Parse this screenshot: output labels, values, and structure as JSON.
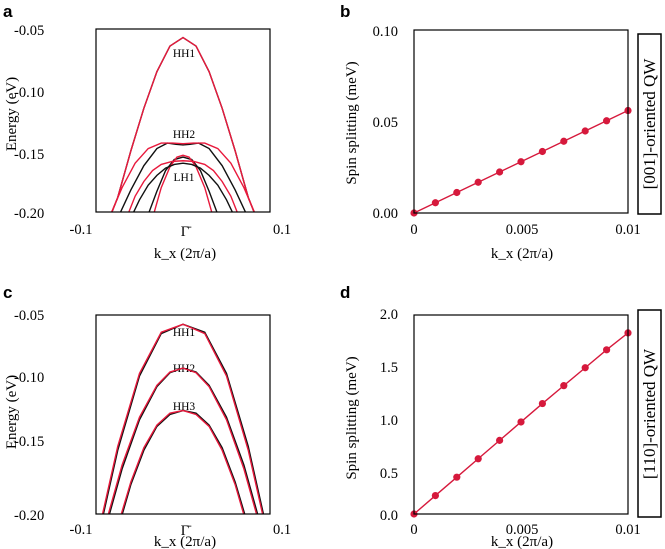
{
  "side_labels": [
    "[001]-oriented QW",
    "[110]-oriented QW"
  ],
  "chart_data": [
    {
      "panel": "a",
      "type": "line",
      "xlabel": "k_x (2π/a)",
      "ylabel": "Energy (eV)",
      "xlim": [
        -0.1,
        0.1
      ],
      "ylim": [
        -0.2,
        -0.05
      ],
      "xticks": [
        "-0.1",
        "Γ̄",
        "0.1"
      ],
      "yticks": [
        "-0.05",
        "-0.10",
        "-0.15",
        "-0.20"
      ],
      "annotations": [
        "HH1",
        "HH2",
        "LH1"
      ],
      "colors": {
        "series_1": "#111111",
        "series_2": "#e8193c"
      },
      "series": [
        {
          "color": "#111111",
          "x": [
            -0.09,
            -0.075,
            -0.06,
            -0.045,
            -0.03,
            -0.015,
            0,
            0.015,
            0.03,
            0.045,
            0.06,
            0.075,
            0.09
          ],
          "y": [
            -0.215,
            -0.188,
            -0.15,
            -0.115,
            -0.085,
            -0.064,
            -0.057,
            -0.064,
            -0.085,
            -0.115,
            -0.15,
            -0.188,
            -0.215
          ]
        },
        {
          "color": "#e8193c",
          "x": [
            -0.09,
            -0.075,
            -0.06,
            -0.045,
            -0.03,
            -0.015,
            0,
            0.015,
            0.03,
            0.045,
            0.06,
            0.075,
            0.09
          ],
          "y": [
            -0.215,
            -0.188,
            -0.15,
            -0.115,
            -0.085,
            -0.064,
            -0.057,
            -0.064,
            -0.085,
            -0.115,
            -0.15,
            -0.188,
            -0.215
          ]
        },
        {
          "color": "#111111",
          "x": [
            -0.075,
            -0.06,
            -0.045,
            -0.03,
            -0.018,
            -0.008,
            0,
            0.008,
            0.018,
            0.03,
            0.045,
            0.06,
            0.075
          ],
          "y": [
            -0.205,
            -0.182,
            -0.162,
            -0.148,
            -0.1435,
            -0.1445,
            -0.145,
            -0.1445,
            -0.1435,
            -0.148,
            -0.162,
            -0.182,
            -0.205
          ]
        },
        {
          "color": "#e8193c",
          "x": [
            -0.085,
            -0.07,
            -0.055,
            -0.04,
            -0.025,
            -0.012,
            0,
            0.012,
            0.025,
            0.04,
            0.055,
            0.07,
            0.085
          ],
          "y": [
            -0.205,
            -0.18,
            -0.16,
            -0.148,
            -0.1435,
            -0.1435,
            -0.144,
            -0.1435,
            -0.1435,
            -0.148,
            -0.16,
            -0.18,
            -0.205
          ]
        },
        {
          "color": "#111111",
          "x": [
            -0.04,
            -0.03,
            -0.02,
            -0.01,
            0,
            0.01,
            0.02,
            0.03,
            0.04
          ],
          "y": [
            -0.202,
            -0.183,
            -0.166,
            -0.157,
            -0.155,
            -0.157,
            -0.166,
            -0.183,
            -0.202
          ]
        },
        {
          "color": "#e8193c",
          "x": [
            -0.035,
            -0.025,
            -0.015,
            -0.007,
            0,
            0.007,
            0.015,
            0.025,
            0.035
          ],
          "y": [
            -0.205,
            -0.18,
            -0.163,
            -0.155,
            -0.1535,
            -0.155,
            -0.163,
            -0.18,
            -0.205
          ]
        },
        {
          "color": "#111111",
          "x": [
            -0.06,
            -0.05,
            -0.04,
            -0.03,
            -0.02,
            -0.01,
            0,
            0.01,
            0.02,
            0.03,
            0.04,
            0.05,
            0.06
          ],
          "y": [
            -0.205,
            -0.19,
            -0.178,
            -0.17,
            -0.164,
            -0.161,
            -0.16,
            -0.161,
            -0.164,
            -0.17,
            -0.178,
            -0.19,
            -0.205
          ]
        },
        {
          "color": "#e8193c",
          "x": [
            -0.065,
            -0.055,
            -0.045,
            -0.035,
            -0.025,
            -0.012,
            0,
            0.012,
            0.025,
            0.035,
            0.045,
            0.055,
            0.065
          ],
          "y": [
            -0.205,
            -0.187,
            -0.175,
            -0.166,
            -0.161,
            -0.1585,
            -0.158,
            -0.1585,
            -0.161,
            -0.166,
            -0.175,
            -0.187,
            -0.205
          ]
        }
      ]
    },
    {
      "panel": "b",
      "type": "line",
      "xlabel": "k_x (2π/a)",
      "ylabel": "Spin splitting (meV)",
      "xlim": [
        0,
        0.01
      ],
      "ylim": [
        0,
        0.1
      ],
      "xticks": [
        "0",
        "0.005",
        "0.01"
      ],
      "yticks": [
        "0.00",
        "0.05",
        "0.10"
      ],
      "colors": {
        "series_1": "#d6193c"
      },
      "series": [
        {
          "color": "#d6193c",
          "x": [
            0,
            0.001,
            0.002,
            0.003,
            0.004,
            0.005,
            0.006,
            0.007,
            0.008,
            0.009,
            0.01
          ],
          "y": [
            0,
            0.0056,
            0.0112,
            0.0168,
            0.0224,
            0.028,
            0.0336,
            0.0392,
            0.0448,
            0.0504,
            0.056
          ]
        }
      ]
    },
    {
      "panel": "c",
      "type": "line",
      "xlabel": "k_x (2π/a)",
      "ylabel": "Energy (eV)",
      "xlim": [
        -0.1,
        0.1
      ],
      "ylim": [
        -0.2,
        -0.05
      ],
      "xticks": [
        "-0.1",
        "Γ̄",
        "0.1"
      ],
      "yticks": [
        "-0.05",
        "-0.10",
        "-0.15",
        "-0.20"
      ],
      "annotations": [
        "HH1",
        "HH2",
        "HH3"
      ],
      "colors": {
        "series_1": "#111111",
        "series_2": "#e8193c"
      },
      "series": [
        {
          "color": "#111111",
          "x": [
            -0.1,
            -0.075,
            -0.05,
            -0.025,
            0,
            0.025,
            0.05,
            0.075,
            0.1
          ],
          "y": [
            -0.225,
            -0.152,
            -0.096,
            -0.064,
            -0.057,
            -0.063,
            -0.094,
            -0.149,
            -0.222
          ]
        },
        {
          "color": "#e8193c",
          "x": [
            -0.1,
            -0.075,
            -0.05,
            -0.025,
            0,
            0.025,
            0.05,
            0.075,
            0.1
          ],
          "y": [
            -0.222,
            -0.149,
            -0.094,
            -0.063,
            -0.057,
            -0.064,
            -0.096,
            -0.152,
            -0.225
          ]
        },
        {
          "color": "#111111",
          "x": [
            -0.09,
            -0.07,
            -0.05,
            -0.03,
            -0.015,
            0,
            0.015,
            0.03,
            0.05,
            0.07,
            0.09
          ],
          "y": [
            -0.213,
            -0.166,
            -0.129,
            -0.104,
            -0.0935,
            -0.09,
            -0.093,
            -0.103,
            -0.127,
            -0.163,
            -0.21
          ]
        },
        {
          "color": "#e8193c",
          "x": [
            -0.09,
            -0.07,
            -0.05,
            -0.03,
            -0.015,
            0,
            0.015,
            0.03,
            0.05,
            0.07,
            0.09
          ],
          "y": [
            -0.21,
            -0.163,
            -0.127,
            -0.103,
            -0.093,
            -0.09,
            -0.0935,
            -0.104,
            -0.129,
            -0.166,
            -0.213
          ]
        },
        {
          "color": "#111111",
          "x": [
            -0.075,
            -0.06,
            -0.045,
            -0.03,
            -0.015,
            0,
            0.015,
            0.03,
            0.045,
            0.06,
            0.075
          ],
          "y": [
            -0.212,
            -0.178,
            -0.152,
            -0.134,
            -0.125,
            -0.122,
            -0.124,
            -0.133,
            -0.15,
            -0.176,
            -0.209
          ]
        },
        {
          "color": "#e8193c",
          "x": [
            -0.075,
            -0.06,
            -0.045,
            -0.03,
            -0.015,
            0,
            0.015,
            0.03,
            0.045,
            0.06,
            0.075
          ],
          "y": [
            -0.209,
            -0.176,
            -0.15,
            -0.133,
            -0.124,
            -0.122,
            -0.125,
            -0.134,
            -0.152,
            -0.178,
            -0.212
          ]
        }
      ]
    },
    {
      "panel": "d",
      "type": "line",
      "xlabel": "k_x (2π/a)",
      "ylabel": "Spin splitting (meV)",
      "xlim": [
        0,
        0.01
      ],
      "ylim": [
        0,
        2.0
      ],
      "xticks": [
        "0",
        "0.005",
        "0.01"
      ],
      "yticks": [
        "0.0",
        "0.5",
        "1.0",
        "1.5",
        "2.0"
      ],
      "colors": {
        "series_1": "#d6193c"
      },
      "series": [
        {
          "color": "#d6193c",
          "x": [
            0,
            0.001,
            0.002,
            0.003,
            0.004,
            0.005,
            0.006,
            0.007,
            0.008,
            0.009,
            0.01
          ],
          "y": [
            0,
            0.185,
            0.37,
            0.555,
            0.74,
            0.925,
            1.11,
            1.29,
            1.47,
            1.65,
            1.82
          ]
        }
      ]
    }
  ]
}
